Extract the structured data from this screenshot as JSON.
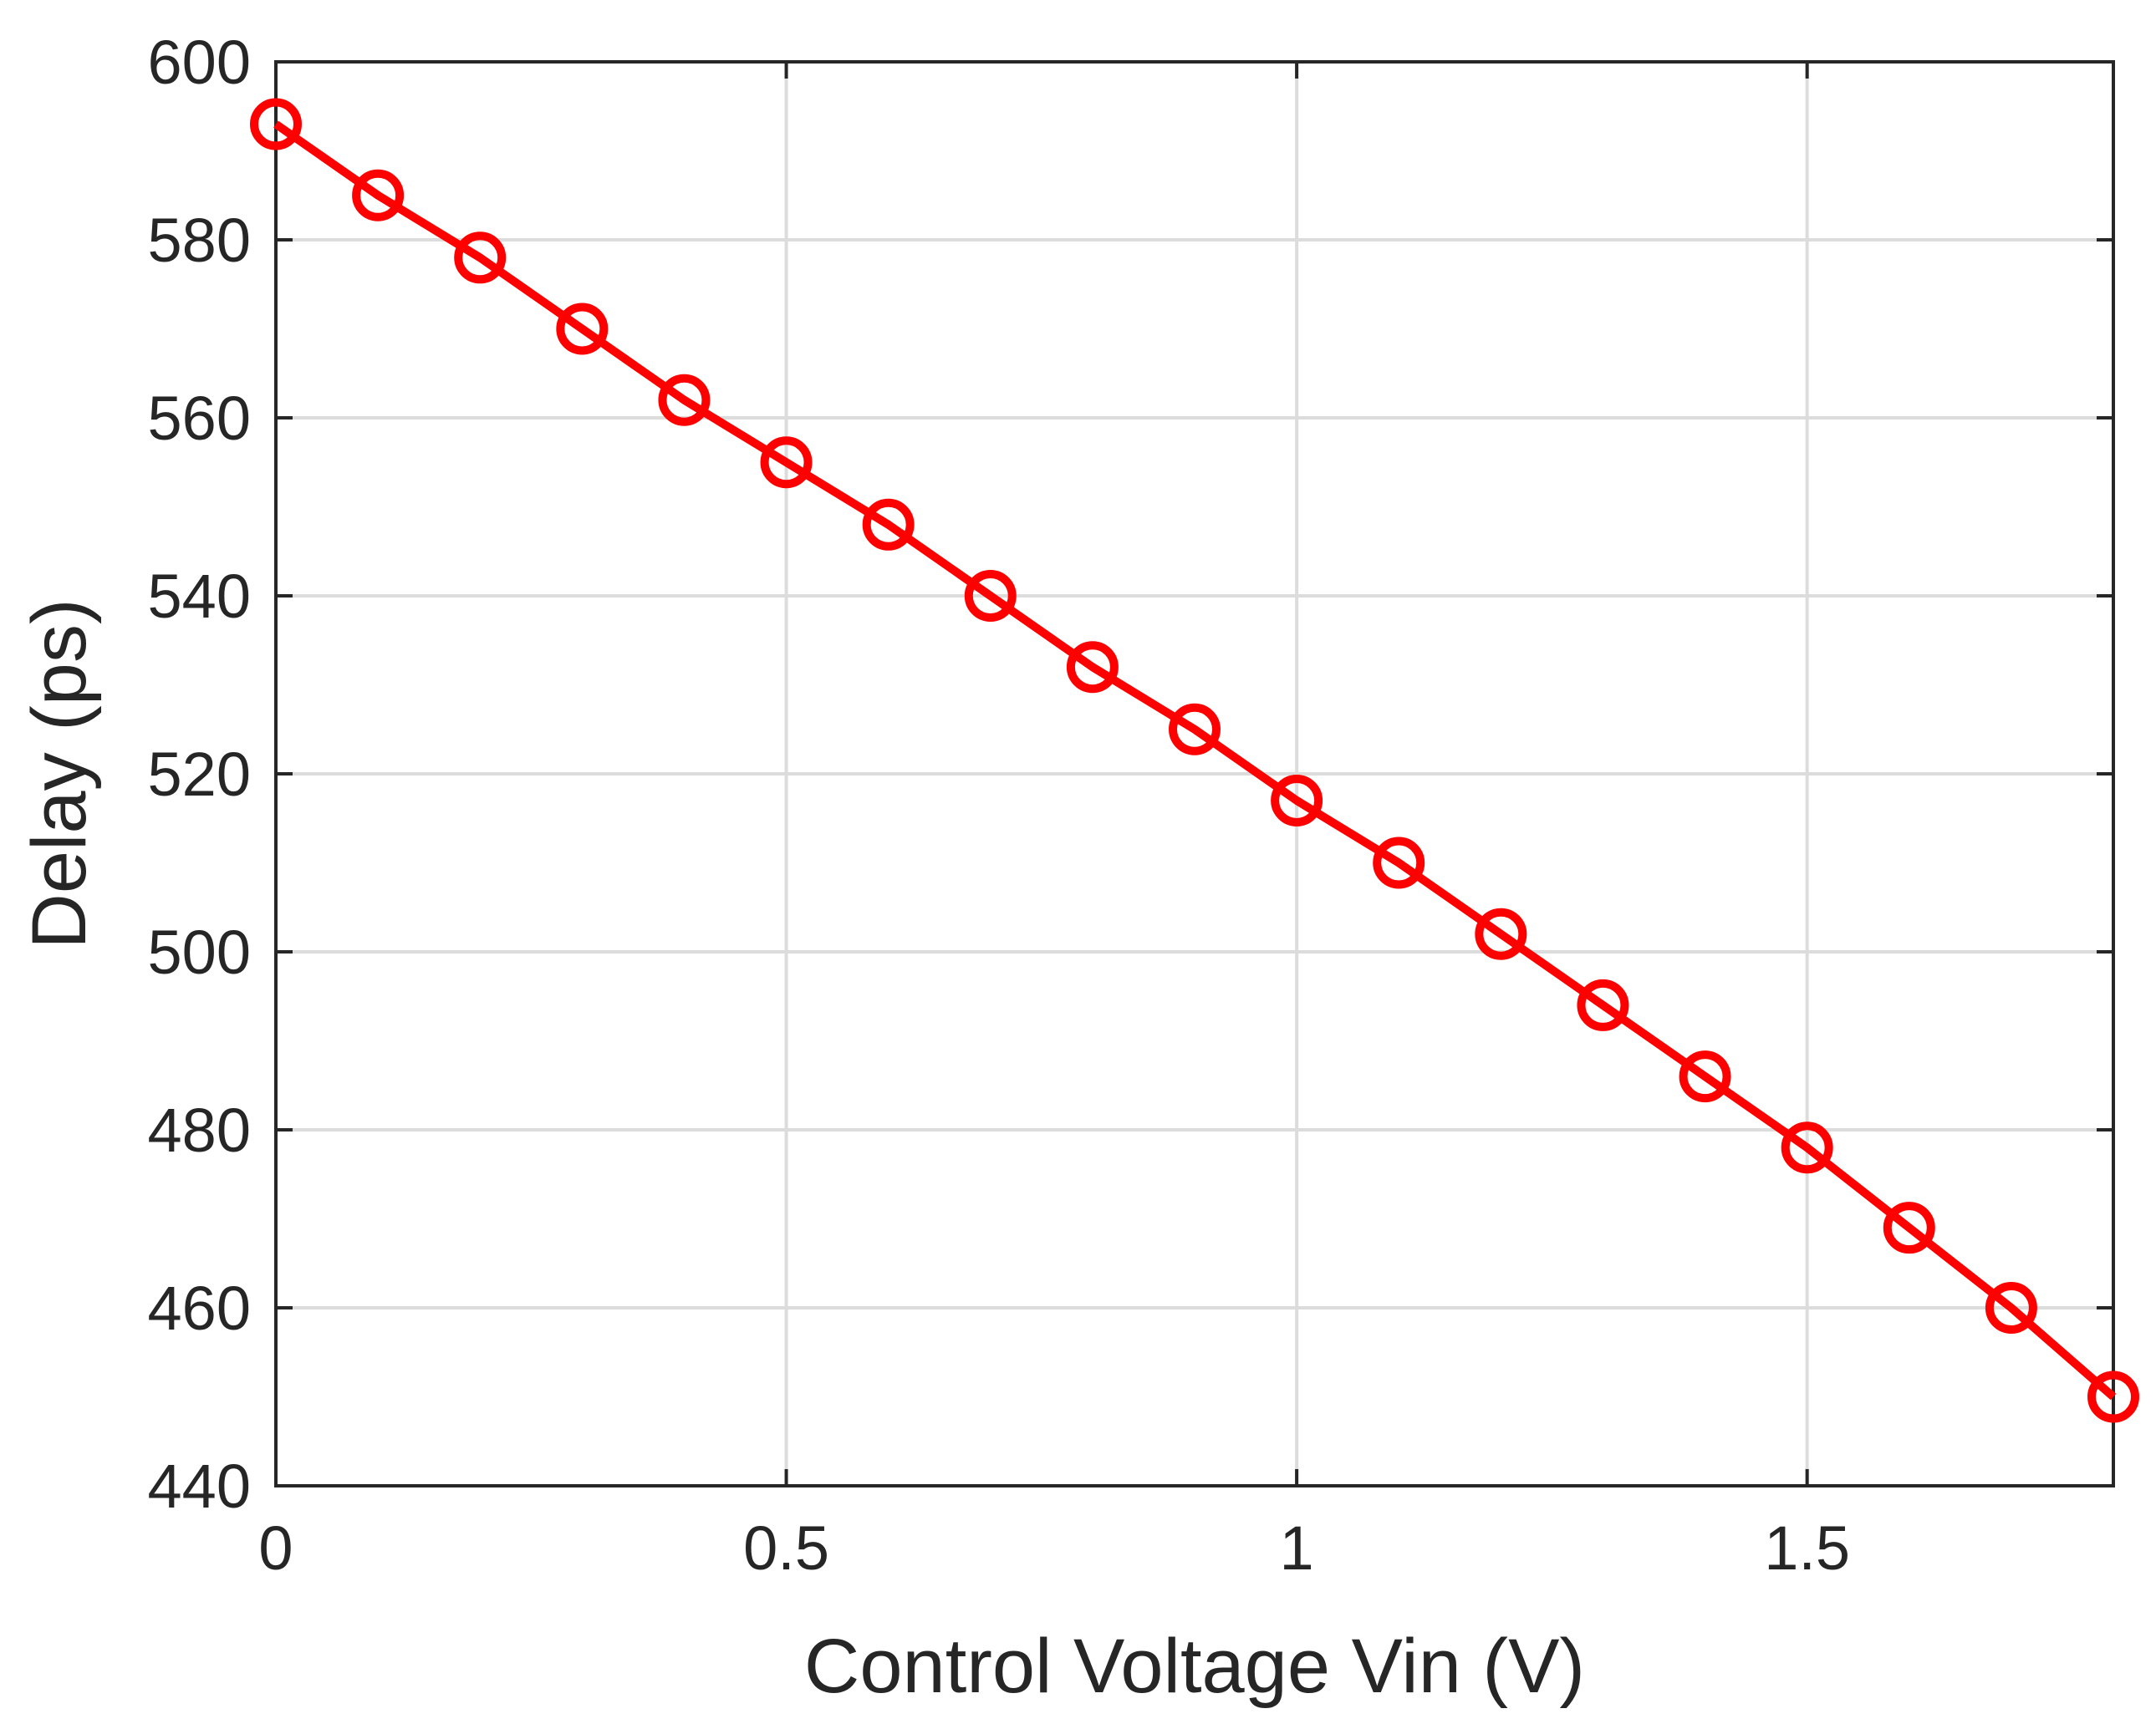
{
  "chart_data": {
    "type": "line",
    "title": "",
    "xlabel": "Control Voltage Vin (V)",
    "ylabel": "Delay (ps)",
    "xlim": [
      0,
      1.8
    ],
    "ylim": [
      440,
      600
    ],
    "xticks": [
      0,
      0.5,
      1,
      1.5
    ],
    "xtick_labels": [
      "0",
      "0.5",
      "1",
      "1.5"
    ],
    "yticks": [
      440,
      460,
      480,
      500,
      520,
      540,
      560,
      580,
      600
    ],
    "ytick_labels": [
      "440",
      "460",
      "480",
      "500",
      "520",
      "540",
      "560",
      "580",
      "600"
    ],
    "grid": true,
    "series": [
      {
        "name": "Delay",
        "color": "#ff0000",
        "marker": "circle",
        "x": [
          0,
          0.1,
          0.2,
          0.3,
          0.4,
          0.5,
          0.6,
          0.7,
          0.8,
          0.9,
          1.0,
          1.1,
          1.2,
          1.3,
          1.4,
          1.5,
          1.6,
          1.7,
          1.8
        ],
        "values": [
          593,
          585,
          578,
          570,
          562,
          555,
          548,
          540,
          532,
          525,
          517,
          510,
          502,
          494,
          486,
          478,
          469,
          460,
          450
        ]
      }
    ]
  }
}
